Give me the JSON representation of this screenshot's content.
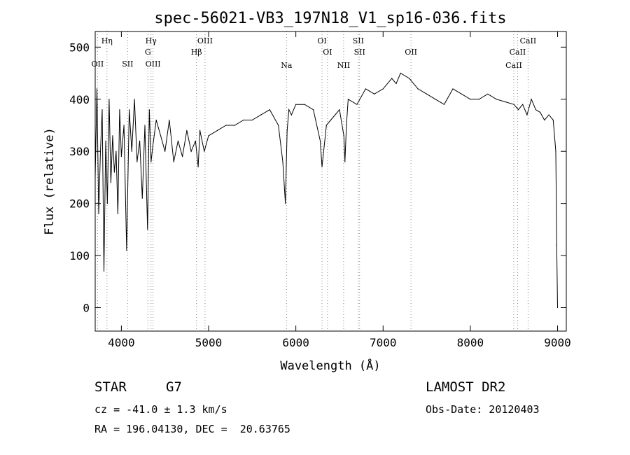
{
  "chart_data": {
    "type": "line",
    "title": "spec-56021-VB3_197N18_V1_sp16-036.fits",
    "xlabel": "Wavelength (Å)",
    "ylabel": "Flux (relative)",
    "xlim": [
      3700,
      9100
    ],
    "ylim": [
      -45,
      530
    ],
    "x_ticks": [
      4000,
      5000,
      6000,
      7000,
      8000,
      9000
    ],
    "y_ticks": [
      0,
      100,
      200,
      300,
      400,
      500
    ],
    "series": [
      {
        "x": [
          3700,
          3720,
          3740,
          3760,
          3780,
          3800,
          3820,
          3840,
          3860,
          3880,
          3900,
          3920,
          3940,
          3960,
          3980,
          4000,
          4030,
          4060,
          4090,
          4120,
          4150,
          4180,
          4210,
          4240,
          4270,
          4300,
          4320,
          4340,
          4360,
          4400,
          4450,
          4500,
          4550,
          4600,
          4650,
          4700,
          4750,
          4800,
          4850,
          4880,
          4900,
          4950,
          5000,
          5100,
          5200,
          5300,
          5400,
          5500,
          5600,
          5700,
          5800,
          5850,
          5880,
          5900,
          5920,
          5950,
          6000,
          6100,
          6200,
          6280,
          6300,
          6350,
          6400,
          6500,
          6550,
          6563,
          6580,
          6600,
          6700,
          6800,
          6900,
          7000,
          7100,
          7150,
          7200,
          7300,
          7400,
          7500,
          7600,
          7700,
          7800,
          7900,
          8000,
          8100,
          8200,
          8300,
          8400,
          8500,
          8550,
          8600,
          8650,
          8700,
          8750,
          8800,
          8850,
          8900,
          8950,
          8980,
          8990,
          9000
        ],
        "y": [
          250,
          420,
          180,
          300,
          380,
          70,
          320,
          200,
          400,
          240,
          330,
          260,
          300,
          180,
          380,
          290,
          350,
          110,
          380,
          300,
          400,
          280,
          320,
          210,
          350,
          150,
          380,
          280,
          310,
          360,
          330,
          300,
          360,
          280,
          320,
          290,
          340,
          300,
          320,
          270,
          340,
          300,
          330,
          340,
          350,
          350,
          360,
          360,
          370,
          380,
          350,
          280,
          200,
          340,
          380,
          370,
          390,
          390,
          380,
          320,
          270,
          350,
          360,
          380,
          330,
          280,
          350,
          400,
          390,
          420,
          410,
          420,
          440,
          430,
          450,
          440,
          420,
          410,
          400,
          390,
          420,
          410,
          400,
          400,
          410,
          400,
          395,
          390,
          380,
          390,
          370,
          400,
          380,
          375,
          360,
          370,
          360,
          300,
          120,
          0
        ]
      }
    ],
    "spectral_lines": [
      {
        "label": "OII",
        "wavelength": 3727
      },
      {
        "label": "Hη",
        "wavelength": 3835
      },
      {
        "label": "SII",
        "wavelength": 4072
      },
      {
        "label": "Hγ",
        "wavelength": 4340
      },
      {
        "label": "G",
        "wavelength": 4304
      },
      {
        "label": "OIII",
        "wavelength": 4363
      },
      {
        "label": "Hβ",
        "wavelength": 4861
      },
      {
        "label": "OIII",
        "wavelength": 4959
      },
      {
        "label": "Na",
        "wavelength": 5893
      },
      {
        "label": "OI",
        "wavelength": 6300
      },
      {
        "label": "OI",
        "wavelength": 6363
      },
      {
        "label": "NII",
        "wavelength": 6548
      },
      {
        "label": "SII",
        "wavelength": 6716
      },
      {
        "label": "SII",
        "wavelength": 6731
      },
      {
        "label": "OII",
        "wavelength": 7320
      },
      {
        "label": "CaII",
        "wavelength": 8498
      },
      {
        "label": "CaII",
        "wavelength": 8542
      },
      {
        "label": "CaII",
        "wavelength": 8662
      }
    ],
    "grid": false,
    "legend": "none"
  },
  "info": {
    "class_label": "STAR",
    "subclass_label": "G7",
    "survey": "LAMOST DR2",
    "redshift": "cz = -41.0 ± 1.3 km/s",
    "obs_date": "Obs-Date: 20120403",
    "coords": "RA = 196.04130, DEC =  20.63765"
  },
  "colors": {
    "line": "#000000",
    "background": "#ffffff"
  }
}
